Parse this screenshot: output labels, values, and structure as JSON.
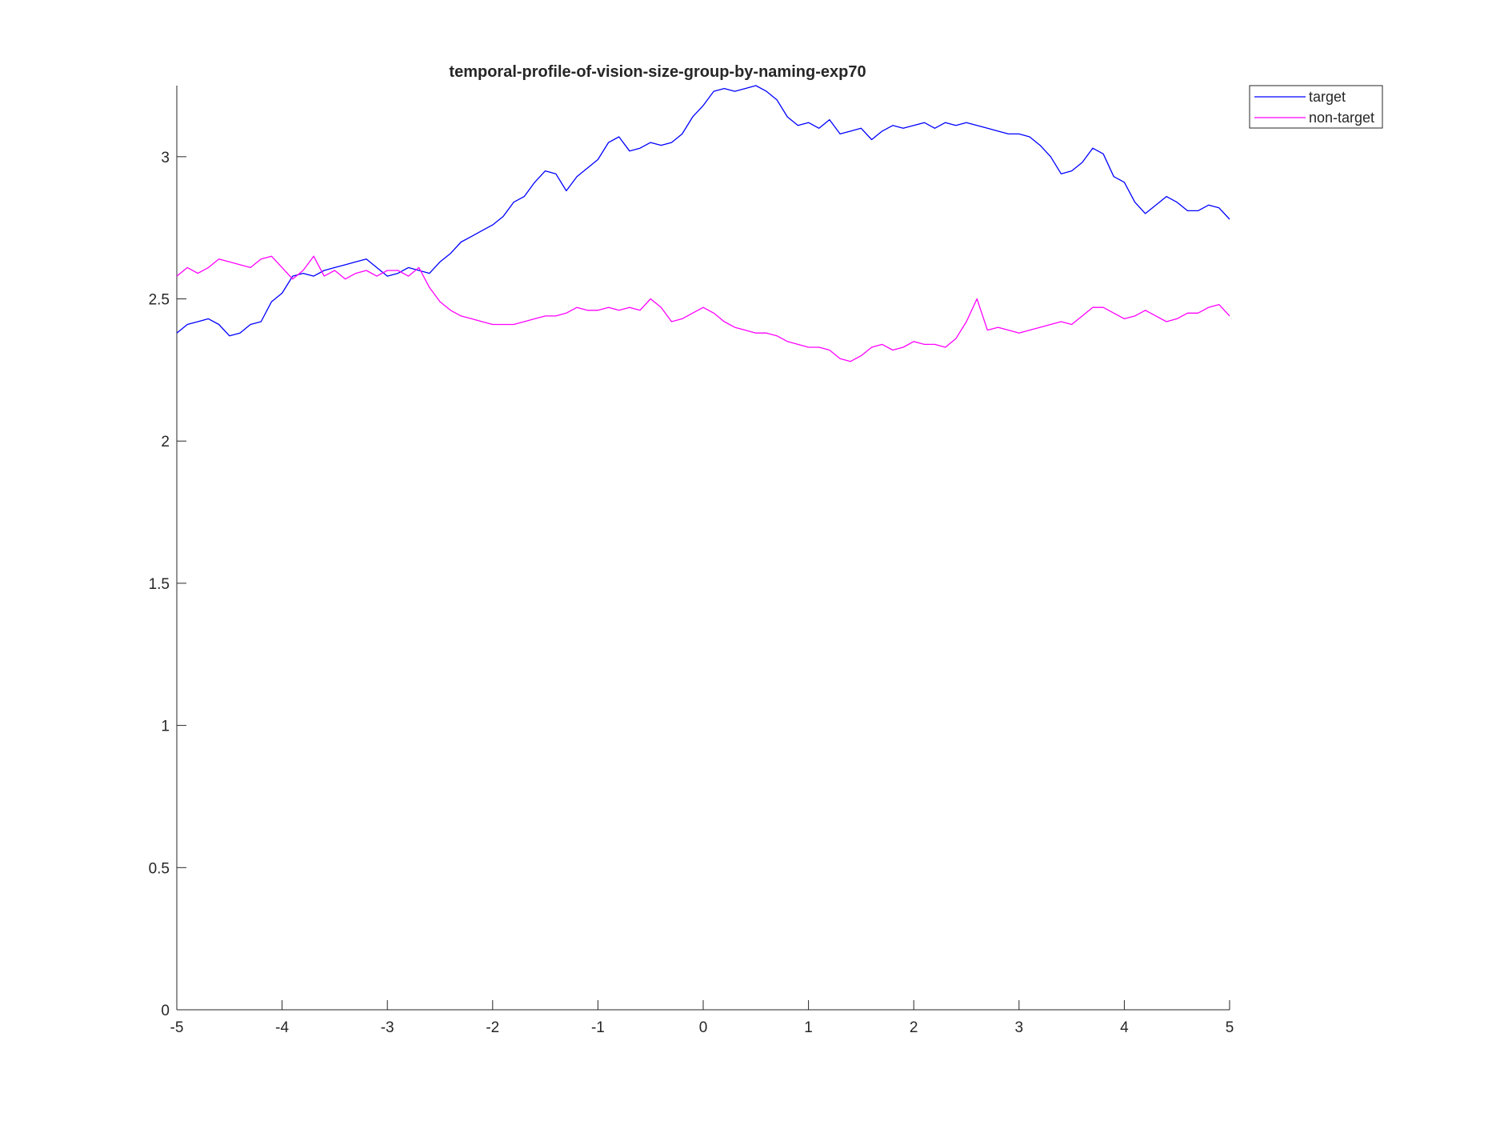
{
  "chart_data": {
    "type": "line",
    "title": "temporal-profile-of-vision-size-group-by-naming-exp70",
    "xlabel": "",
    "ylabel": "",
    "xlim": [
      -5,
      5
    ],
    "ylim": [
      0,
      3.25
    ],
    "xticks": [
      "-5",
      "-4",
      "-3",
      "-2",
      "-1",
      "0",
      "1",
      "2",
      "3",
      "4",
      "5"
    ],
    "yticks": [
      "0",
      "0.5",
      "1",
      "1.5",
      "2",
      "2.5",
      "3"
    ],
    "grid": false,
    "legend_position": "top-right",
    "x": [
      -5,
      -4.9,
      -4.8,
      -4.7,
      -4.6,
      -4.5,
      -4.4,
      -4.3,
      -4.2,
      -4.1,
      -4.0,
      -3.9,
      -3.8,
      -3.7,
      -3.6,
      -3.5,
      -3.4,
      -3.3,
      -3.2,
      -3.1,
      -3.0,
      -2.9,
      -2.8,
      -2.7,
      -2.6,
      -2.5,
      -2.4,
      -2.3,
      -2.2,
      -2.1,
      -2.0,
      -1.9,
      -1.8,
      -1.7,
      -1.6,
      -1.5,
      -1.4,
      -1.3,
      -1.2,
      -1.1,
      -1.0,
      -0.9,
      -0.8,
      -0.7,
      -0.6,
      -0.5,
      -0.4,
      -0.3,
      -0.2,
      -0.1,
      0.0,
      0.1,
      0.2,
      0.3,
      0.4,
      0.5,
      0.6,
      0.7,
      0.8,
      0.9,
      1.0,
      1.1,
      1.2,
      1.3,
      1.4,
      1.5,
      1.6,
      1.7,
      1.8,
      1.9,
      2.0,
      2.1,
      2.2,
      2.3,
      2.4,
      2.5,
      2.6,
      2.7,
      2.8,
      2.9,
      3.0,
      3.1,
      3.2,
      3.3,
      3.4,
      3.5,
      3.6,
      3.7,
      3.8,
      3.9,
      4.0,
      4.1,
      4.2,
      4.3,
      4.4,
      4.5,
      4.6,
      4.7,
      4.8,
      4.9,
      5.0
    ],
    "series": [
      {
        "name": "target",
        "color": "#0000ff",
        "values": [
          2.38,
          2.41,
          2.42,
          2.43,
          2.41,
          2.37,
          2.38,
          2.41,
          2.42,
          2.49,
          2.52,
          2.58,
          2.59,
          2.58,
          2.6,
          2.61,
          2.62,
          2.63,
          2.64,
          2.61,
          2.58,
          2.59,
          2.61,
          2.6,
          2.59,
          2.63,
          2.66,
          2.7,
          2.72,
          2.74,
          2.76,
          2.79,
          2.84,
          2.86,
          2.91,
          2.95,
          2.94,
          2.88,
          2.93,
          2.96,
          2.99,
          3.05,
          3.07,
          3.02,
          3.03,
          3.05,
          3.04,
          3.05,
          3.08,
          3.14,
          3.18,
          3.23,
          3.24,
          3.23,
          3.24,
          3.25,
          3.23,
          3.2,
          3.14,
          3.11,
          3.12,
          3.1,
          3.13,
          3.08,
          3.09,
          3.1,
          3.06,
          3.09,
          3.11,
          3.1,
          3.11,
          3.12,
          3.1,
          3.12,
          3.11,
          3.12,
          3.11,
          3.1,
          3.09,
          3.08,
          3.08,
          3.07,
          3.04,
          3.0,
          2.94,
          2.95,
          2.98,
          3.03,
          3.01,
          2.93,
          2.91,
          2.84,
          2.8,
          2.83,
          2.86,
          2.84,
          2.81,
          2.81,
          2.83,
          2.82,
          2.78
        ]
      },
      {
        "name": "non-target",
        "color": "#ff00ff",
        "values": [
          2.58,
          2.61,
          2.59,
          2.61,
          2.64,
          2.63,
          2.62,
          2.61,
          2.64,
          2.65,
          2.61,
          2.57,
          2.6,
          2.65,
          2.58,
          2.6,
          2.57,
          2.59,
          2.6,
          2.58,
          2.6,
          2.6,
          2.58,
          2.61,
          2.54,
          2.49,
          2.46,
          2.44,
          2.43,
          2.42,
          2.41,
          2.41,
          2.41,
          2.42,
          2.43,
          2.44,
          2.44,
          2.45,
          2.47,
          2.46,
          2.46,
          2.47,
          2.46,
          2.47,
          2.46,
          2.5,
          2.47,
          2.42,
          2.43,
          2.45,
          2.47,
          2.45,
          2.42,
          2.4,
          2.39,
          2.38,
          2.38,
          2.37,
          2.35,
          2.34,
          2.33,
          2.33,
          2.32,
          2.29,
          2.28,
          2.3,
          2.33,
          2.34,
          2.32,
          2.33,
          2.35,
          2.34,
          2.34,
          2.33,
          2.36,
          2.42,
          2.5,
          2.39,
          2.4,
          2.39,
          2.38,
          2.39,
          2.4,
          2.41,
          2.42,
          2.41,
          2.44,
          2.47,
          2.47,
          2.45,
          2.43,
          2.44,
          2.46,
          2.44,
          2.42,
          2.43,
          2.45,
          2.45,
          2.47,
          2.48,
          2.44
        ]
      }
    ]
  }
}
